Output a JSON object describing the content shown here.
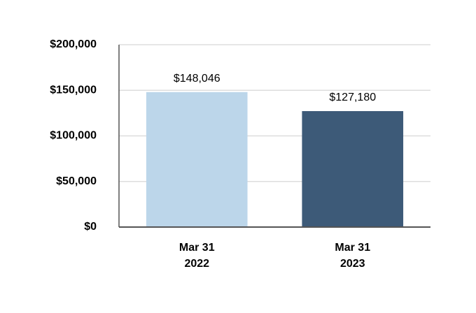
{
  "chart_data": {
    "type": "bar",
    "categories": [
      [
        "Mar 31",
        "2022"
      ],
      [
        "Mar 31",
        "2023"
      ]
    ],
    "values": [
      148046,
      127180
    ],
    "value_labels": [
      "$148,046",
      "$127,180"
    ],
    "colors": [
      "#bcd6ea",
      "#3d5a78"
    ],
    "ylim": [
      0,
      200000
    ],
    "yticks": [
      {
        "value": 0,
        "label": "$0"
      },
      {
        "value": 50000,
        "label": "$50,000"
      },
      {
        "value": 100000,
        "label": "$100,000"
      },
      {
        "value": 150000,
        "label": "$150,000"
      },
      {
        "value": 200000,
        "label": "$200,000"
      }
    ],
    "grid": true
  }
}
